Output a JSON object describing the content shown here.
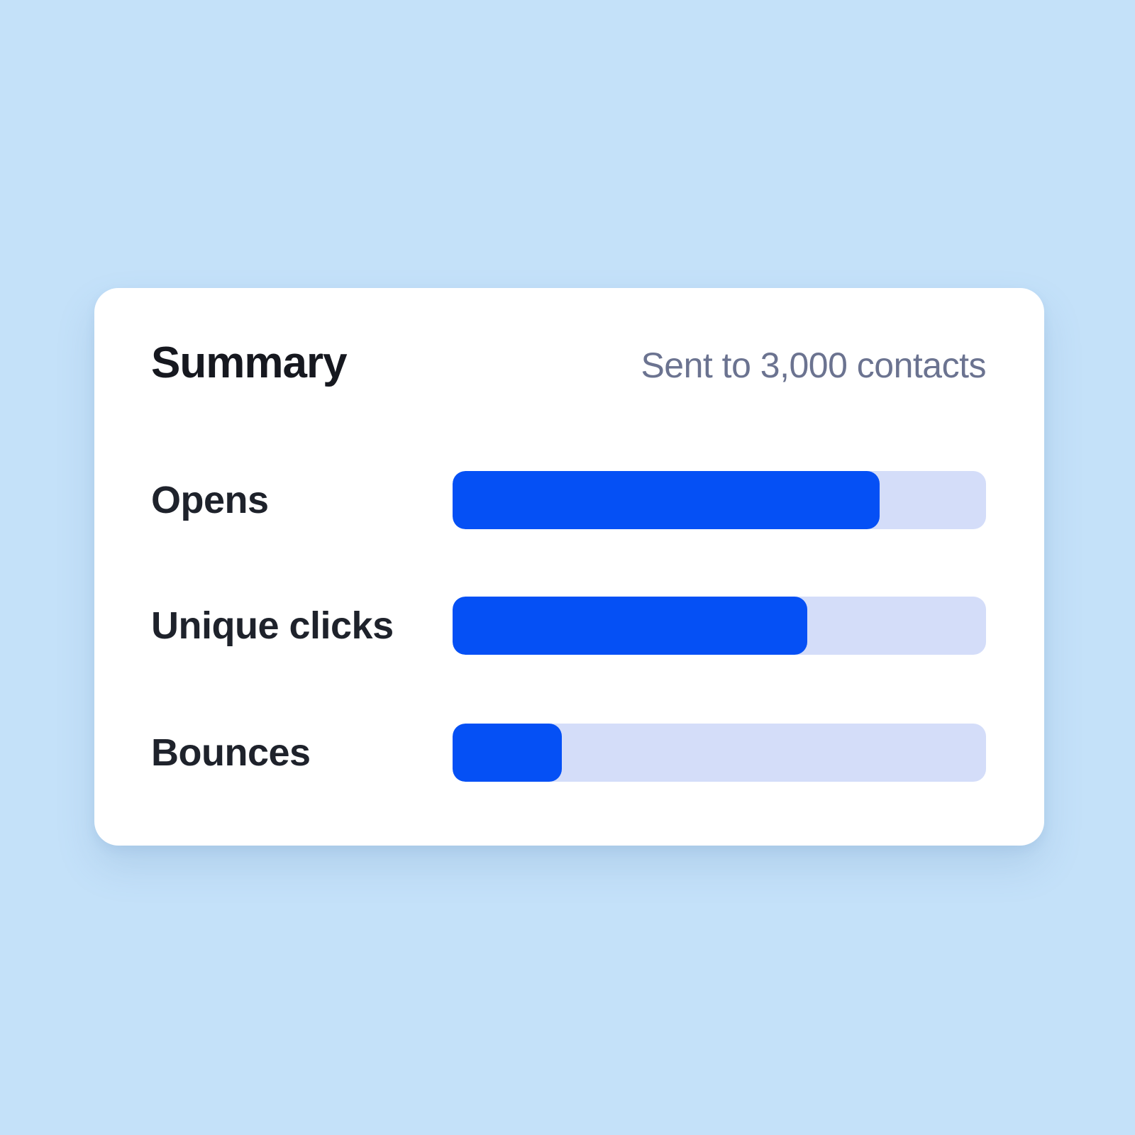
{
  "card": {
    "title": "Summary",
    "subtitle": "Sent to 3,000 contacts"
  },
  "chart_data": {
    "type": "bar",
    "orientation": "horizontal",
    "title": "Summary",
    "annotation": "Sent to 3,000 contacts",
    "categories": [
      "Opens",
      "Unique clicks",
      "Bounces"
    ],
    "values_percent": [
      80,
      66.5,
      20.5
    ],
    "xlim": [
      0,
      100
    ],
    "grid": false,
    "legend": false,
    "colors": {
      "bar_fill": "#0550f5",
      "bar_track": "#d4ddf9",
      "card_background": "#ffffff",
      "page_background": "#c4e1f9",
      "title_text": "#16181f",
      "label_text": "#1e222b",
      "annotation_text": "#6b7390"
    }
  }
}
